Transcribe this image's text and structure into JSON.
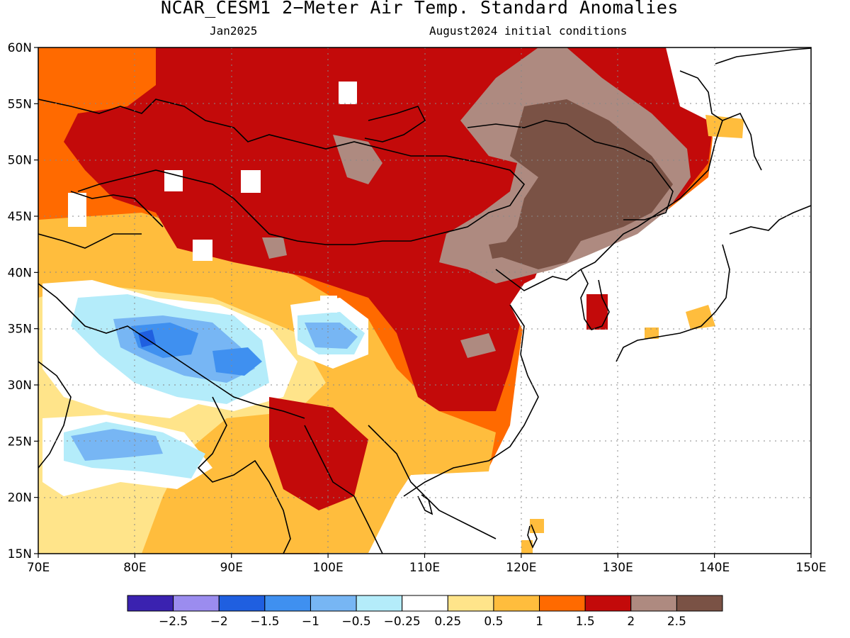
{
  "title": "NCAR_CESM1 2−Meter Air Temp. Standard Anomalies",
  "subtitle_left": "Jan2025",
  "subtitle_right": "August2024 initial conditions",
  "map": {
    "lon_range": [
      70,
      150
    ],
    "lat_range": [
      15,
      60
    ],
    "grid": "dotted",
    "lon_ticks": [
      "70E",
      "80E",
      "90E",
      "100E",
      "110E",
      "120E",
      "130E",
      "140E",
      "150E"
    ],
    "lat_ticks": [
      "15N",
      "20N",
      "25N",
      "30N",
      "35N",
      "40N",
      "45N",
      "50N",
      "55N",
      "60N"
    ]
  },
  "colorbar": {
    "colors": [
      "#3a22b0",
      "#9b8cef",
      "#1f5fe0",
      "#3f90f0",
      "#77b6f4",
      "#b4ecfa",
      "#ffffff",
      "#ffe48a",
      "#ffbd3d",
      "#ff6a00",
      "#c30a0a",
      "#ae8a80",
      "#7a5245"
    ],
    "labels": [
      "−2.5",
      "−2",
      "−1.5",
      "−1",
      "−0.5",
      "−0.25",
      "0.25",
      "0.5",
      "1",
      "1.5",
      "2",
      "2.5"
    ]
  }
}
